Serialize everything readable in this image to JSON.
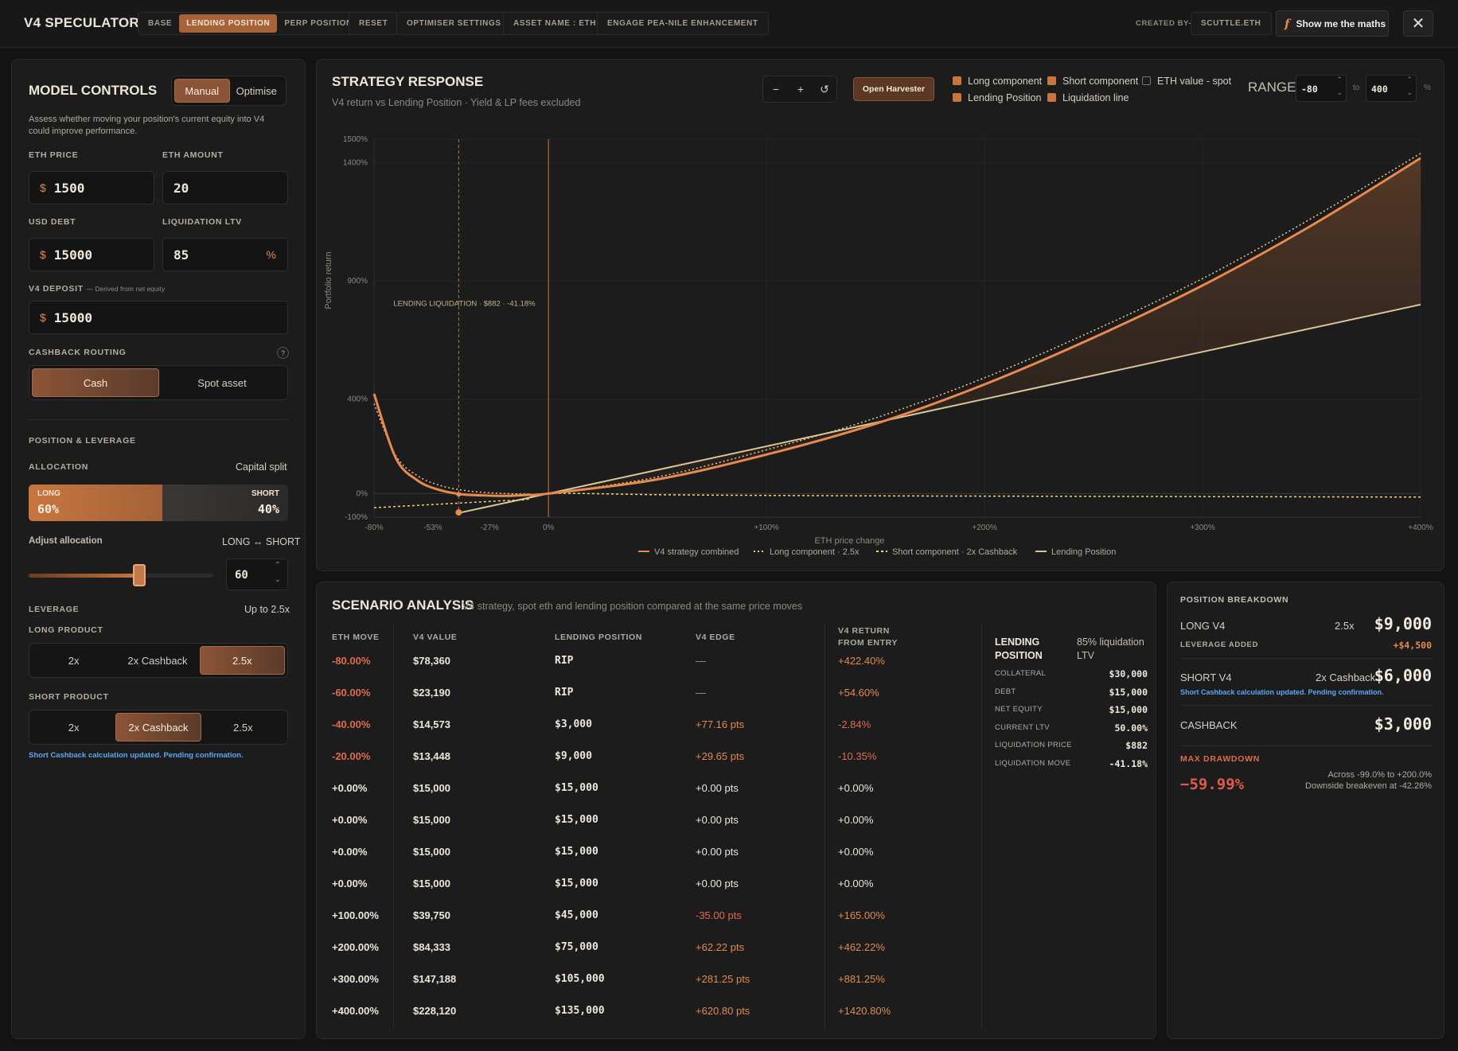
{
  "header": {
    "title": "V4 SPECULATOR",
    "tabs": [
      "BASE",
      "LENDING POSITION",
      "PERP POSITION"
    ],
    "reset": "RESET",
    "optimiser": "OPTIMISER SETTINGS",
    "asset": "ASSET NAME : ETH",
    "engage": "ENGAGE PEA-NILE ENHANCEMENT",
    "created_label": "CREATED BY-",
    "created_value": "SCUTTLE.ETH",
    "maths_button": "Show me the maths",
    "close": "✕"
  },
  "controls": {
    "title": "MODEL CONTROLS",
    "mode_options": [
      "Manual",
      "Optimise"
    ],
    "description": "Assess whether moving your position's current equity into V4 could improve performance.",
    "eth_price_label": "ETH PRICE",
    "eth_price": "1500",
    "eth_amount_label": "ETH AMOUNT",
    "eth_amount": "20",
    "usd_debt_label": "USD DEBT",
    "usd_debt": "15000",
    "liq_ltv_label": "LIQUIDATION LTV",
    "liq_ltv": "85",
    "currency": "$",
    "percent": "%",
    "v4_deposit_label": "V4 DEPOSIT",
    "v4_deposit_note": "— Derived from net equity",
    "v4_deposit": "15000",
    "cashback_label": "CASHBACK ROUTING",
    "help": "?",
    "cashback_options": [
      "Cash",
      "Spot asset"
    ],
    "position_label": "POSITION & LEVERAGE",
    "allocation_label": "ALLOCATION",
    "capital_split": "Capital split",
    "long_label": "LONG",
    "long_pct": "60%",
    "short_label": "SHORT",
    "short_pct": "40%",
    "long_fraction": 0.6,
    "adjust_label": "Adjust allocation",
    "long_short": "LONG ↔ SHORT",
    "slider_value": "60",
    "leverage_label": "LEVERAGE",
    "leverage_note": "Up to 2.5x",
    "long_product_label": "LONG PRODUCT",
    "long_products": [
      "2x",
      "2x Cashback",
      "2.5x"
    ],
    "short_product_label": "SHORT PRODUCT",
    "short_products": [
      "2x",
      "2x Cashback",
      "2.5x"
    ],
    "notice": "Short Cashback calculation updated. Pending confirmation."
  },
  "strategy": {
    "title": "STRATEGY RESPONSE",
    "subtitle": "V4 return vs Lending Position · Yield & LP fees excluded",
    "zoom_out": "−",
    "zoom_in": "+",
    "refresh": "↺",
    "harvester": "Open Harvester",
    "legend": [
      "Long component",
      "Short component",
      "ETH value - spot",
      "Lending Position",
      "Liquidation line"
    ],
    "range_label": "RANGE",
    "range_min": "-80",
    "range_to": "to",
    "range_max": "400",
    "range_unit": "%",
    "colors": {
      "combined": "#e88a4c",
      "long": "#f0c987",
      "short": "#f3d66d",
      "lending": "#d9c79a",
      "fill": "#5b3a26"
    }
  },
  "chart_data": {
    "type": "line",
    "ylabel": "Portfolio return",
    "xlabel": "ETH price change",
    "x_ticks": [
      "-80%",
      "-53%",
      "-27%",
      "0%",
      "+100%",
      "+200%",
      "+300%",
      "+400%"
    ],
    "x_tick_values": [
      -80,
      -53,
      -27,
      0,
      100,
      200,
      300,
      400
    ],
    "y_ticks": [
      "1500%",
      "1400%",
      "900%",
      "400%",
      "0%",
      "-100%"
    ],
    "y_tick_values": [
      1500,
      1400,
      900,
      400,
      0,
      -100
    ],
    "xlim": [
      -80,
      400
    ],
    "ylim": [
      -100,
      1500
    ],
    "liquidation": {
      "x": -41.18,
      "label": "LENDING LIQUIDATION · $882 · -41.18%"
    },
    "x": [
      -80,
      -70,
      -60,
      -50,
      -40,
      -30,
      -20,
      -10,
      0,
      50,
      100,
      150,
      200,
      250,
      300,
      350,
      400
    ],
    "series": [
      {
        "name": "V4 strategy combined",
        "values": [
          422,
          150,
          55,
          15,
          -3,
          -8,
          -10,
          -6,
          0,
          60,
          165,
          295,
          462,
          660,
          881,
          1135,
          1420
        ]
      },
      {
        "name": "Long component · 2.5x",
        "values": [
          380,
          160,
          75,
          35,
          15,
          5,
          0,
          -2,
          0,
          70,
          185,
          320,
          490,
          690,
          910,
          1165,
          1440
        ]
      },
      {
        "name": "Short component · 2x Cashback",
        "values": [
          -60,
          -55,
          -50,
          -45,
          -40,
          -35,
          -30,
          -25,
          0,
          -5,
          -8,
          -10,
          -11,
          -12,
          -13,
          -14,
          -15
        ]
      },
      {
        "name": "Lending Position",
        "values": [
          null,
          null,
          null,
          null,
          -80,
          -60,
          -40,
          -20,
          0,
          100,
          200,
          300,
          400,
          500,
          600,
          700,
          800
        ]
      }
    ]
  },
  "scenario": {
    "title": "SCENARIO ANALYSIS",
    "subtitle": "V4 strategy, spot eth and lending position compared at the same price moves",
    "headers": [
      "ETH MOVE",
      "V4 VALUE",
      "LENDING POSITION",
      "V4 EDGE",
      "V4 RETURN",
      "FROM ENTRY"
    ],
    "rows": [
      {
        "move": "-80.00%",
        "v4": "$78,360",
        "lend": "RIP",
        "edge": "—",
        "ret": "+422.40%"
      },
      {
        "move": "-60.00%",
        "v4": "$23,190",
        "lend": "RIP",
        "edge": "—",
        "ret": "+54.60%"
      },
      {
        "move": "-40.00%",
        "v4": "$14,573",
        "lend": "$3,000",
        "edge": "+77.16 pts",
        "ret": "-2.84%"
      },
      {
        "move": "-20.00%",
        "v4": "$13,448",
        "lend": "$9,000",
        "edge": "+29.65 pts",
        "ret": "-10.35%"
      },
      {
        "move": "+0.00%",
        "v4": "$15,000",
        "lend": "$15,000",
        "edge": "+0.00 pts",
        "ret": "+0.00%"
      },
      {
        "move": "+0.00%",
        "v4": "$15,000",
        "lend": "$15,000",
        "edge": "+0.00 pts",
        "ret": "+0.00%"
      },
      {
        "move": "+0.00%",
        "v4": "$15,000",
        "lend": "$15,000",
        "edge": "+0.00 pts",
        "ret": "+0.00%"
      },
      {
        "move": "+0.00%",
        "v4": "$15,000",
        "lend": "$15,000",
        "edge": "+0.00 pts",
        "ret": "+0.00%"
      },
      {
        "move": "+100.00%",
        "v4": "$39,750",
        "lend": "$45,000",
        "edge": "-35.00 pts",
        "ret": "+165.00%"
      },
      {
        "move": "+200.00%",
        "v4": "$84,333",
        "lend": "$75,000",
        "edge": "+62.22 pts",
        "ret": "+462.22%"
      },
      {
        "move": "+300.00%",
        "v4": "$147,188",
        "lend": "$105,000",
        "edge": "+281.25 pts",
        "ret": "+881.25%"
      },
      {
        "move": "+400.00%",
        "v4": "$228,120",
        "lend": "$135,000",
        "edge": "+620.80 pts",
        "ret": "+1420.80%"
      }
    ],
    "lending": {
      "title_line1": "LENDING",
      "title_line2": "POSITION",
      "ltv_line1": "85% liquidation",
      "ltv_line2": "LTV",
      "items": [
        {
          "k": "COLLATERAL",
          "v": "$30,000"
        },
        {
          "k": "DEBT",
          "v": "$15,000"
        },
        {
          "k": "NET EQUITY",
          "v": "$15,000"
        },
        {
          "k": "CURRENT LTV",
          "v": "50.00%"
        },
        {
          "k": "LIQUIDATION PRICE",
          "v": "$882"
        },
        {
          "k": "LIQUIDATION MOVE",
          "v": "-41.18%"
        }
      ]
    }
  },
  "breakdown": {
    "title": "POSITION BREAKDOWN",
    "long_label": "LONG V4",
    "long_mult": "2.5x",
    "long_value": "$9,000",
    "leverage_added_label": "LEVERAGE ADDED",
    "leverage_added": "+$4,500",
    "short_label": "SHORT V4",
    "short_mult": "2x Cashback",
    "short_value": "$6,000",
    "short_note": "Short Cashback calculation updated. Pending confirmation.",
    "cashback_label": "CASHBACK",
    "cashback_value": "$3,000",
    "drawdown_label": "MAX DRAWDOWN",
    "drawdown_value": "−59.99%",
    "drawdown_note1": "Across -99.0% to +200.0%",
    "drawdown_note2": "Downside breakeven at -42.26%"
  }
}
